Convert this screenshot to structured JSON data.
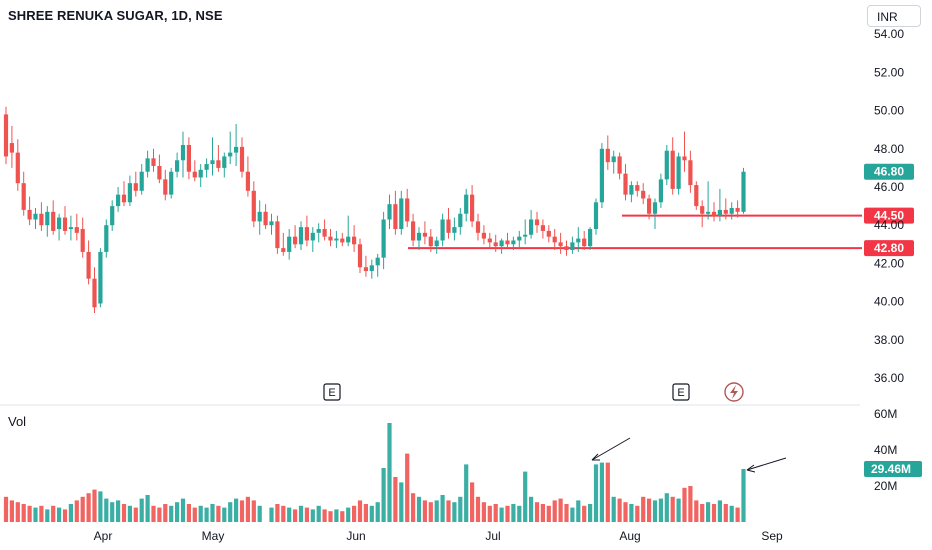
{
  "header": {
    "title": "SHREE RENUKA SUGAR, 1D, NSE",
    "currency": "INR"
  },
  "volume_pane": {
    "label": "Vol"
  },
  "colors": {
    "up": "#26a69a",
    "down": "#ef5350",
    "level": "#f23645",
    "axis_text": "#131722"
  },
  "chart_data": {
    "type": "candlestick",
    "price_axis": {
      "ticks": [
        36,
        38,
        40,
        42,
        44,
        46,
        48,
        50,
        52,
        54
      ],
      "tick_labels": [
        "36.00",
        "38.00",
        "40.00",
        "42.00",
        "44.00",
        "46.00",
        "48.00",
        "50.00",
        "52.00",
        "54.00"
      ]
    },
    "time_axis": {
      "labels": [
        "Apr",
        "May",
        "Jun",
        "Jul",
        "Aug",
        "Sep"
      ]
    },
    "volume_axis": {
      "ticks": [
        20,
        40,
        60
      ],
      "tick_labels": [
        "20M",
        "40M",
        "60M"
      ],
      "unit": "M"
    },
    "last_price": {
      "value": 46.8,
      "label": "46.80"
    },
    "last_volume": {
      "value": 29.46,
      "label": "29.46M"
    },
    "levels": [
      {
        "value": 44.5,
        "label": "44.50"
      },
      {
        "value": 42.8,
        "label": "42.80"
      }
    ],
    "earnings_markers": [
      {
        "label": "E"
      },
      {
        "label": "E"
      }
    ],
    "dividend_marker": {
      "icon": "lightning-icon"
    },
    "candles": [
      [
        49.8,
        50.2,
        47.2,
        47.6,
        14
      ],
      [
        48.3,
        49.2,
        47,
        47.8,
        12
      ],
      [
        47.8,
        48.5,
        45.8,
        46.2,
        11
      ],
      [
        46.2,
        46.8,
        44.5,
        44.8,
        10
      ],
      [
        44.8,
        45.5,
        44,
        44.3,
        9
      ],
      [
        44.3,
        44.9,
        43.8,
        44.6,
        8
      ],
      [
        44.6,
        45.2,
        43.7,
        44,
        9
      ],
      [
        44,
        45,
        43.4,
        44.7,
        7
      ],
      [
        44.7,
        45.3,
        43.5,
        43.7,
        9
      ],
      [
        43.8,
        44.6,
        43.2,
        44.4,
        8
      ],
      [
        44.4,
        45,
        43.5,
        43.7,
        7
      ],
      [
        43.8,
        44.5,
        43.2,
        43.9,
        10
      ],
      [
        43.9,
        44.6,
        43.2,
        43.6,
        12
      ],
      [
        43.8,
        44.4,
        42.3,
        42.6,
        14
      ],
      [
        42.6,
        43.2,
        40.9,
        41.2,
        16
      ],
      [
        41.2,
        41.8,
        39.4,
        39.7,
        18
      ],
      [
        39.9,
        42.8,
        39.7,
        42.6,
        17
      ],
      [
        42.6,
        44.3,
        42.3,
        44,
        13
      ],
      [
        44,
        45.3,
        43.7,
        45,
        11
      ],
      [
        45,
        46,
        44.7,
        45.6,
        12
      ],
      [
        45.6,
        46.3,
        45,
        45.2,
        10
      ],
      [
        45.2,
        46.6,
        45,
        46.2,
        9
      ],
      [
        46.2,
        46.8,
        45.5,
        45.8,
        8
      ],
      [
        45.8,
        47.2,
        45.6,
        46.8,
        13
      ],
      [
        46.8,
        47.9,
        46.5,
        47.5,
        15
      ],
      [
        47.5,
        48,
        46.8,
        47.1,
        9
      ],
      [
        47.1,
        47.7,
        46.2,
        46.4,
        8
      ],
      [
        46.4,
        46.9,
        45.3,
        45.6,
        10
      ],
      [
        45.6,
        47,
        45.4,
        46.8,
        9
      ],
      [
        46.8,
        47.8,
        46.5,
        47.4,
        11
      ],
      [
        47.4,
        48.9,
        46.5,
        48.2,
        13
      ],
      [
        48.2,
        48.6,
        46.4,
        46.8,
        10
      ],
      [
        46.8,
        47.4,
        46.3,
        46.5,
        8
      ],
      [
        46.5,
        47.2,
        46,
        46.9,
        9
      ],
      [
        46.9,
        47.5,
        46.5,
        47.2,
        8
      ],
      [
        47.2,
        48.6,
        46.6,
        47.4,
        10
      ],
      [
        47.4,
        48.2,
        46.8,
        47,
        9
      ],
      [
        47,
        47.8,
        46.5,
        47.6,
        8
      ],
      [
        47.6,
        48.9,
        47.2,
        47.8,
        11
      ],
      [
        47.8,
        49.3,
        47.1,
        48.1,
        13
      ],
      [
        48.1,
        48.6,
        46.5,
        46.8,
        12
      ],
      [
        46.8,
        47.6,
        45.5,
        45.8,
        14
      ],
      [
        45.8,
        46.3,
        43.9,
        44.2,
        12
      ],
      [
        44.2,
        45.3,
        43.5,
        44.7,
        9
      ],
      [
        44.7,
        45.1,
        43.8,
        44
      ],
      [
        44,
        44.6,
        43.5,
        44.2,
        8
      ],
      [
        44.2,
        44.5,
        42.5,
        42.8,
        10
      ],
      [
        42.8,
        43.6,
        42.4,
        42.6,
        9
      ],
      [
        42.6,
        43.8,
        42.2,
        43.4,
        8
      ],
      [
        43.4,
        44,
        42.8,
        43,
        7
      ],
      [
        43,
        44.2,
        42.7,
        43.9,
        9
      ],
      [
        43.9,
        44.5,
        42.9,
        43.2,
        8
      ],
      [
        43.2,
        43.9,
        42.6,
        43.6,
        7
      ],
      [
        43.6,
        44.1,
        43.1,
        43.8,
        9
      ],
      [
        43.8,
        44.3,
        43.2,
        43.4,
        7
      ],
      [
        43.4,
        43.8,
        42.9,
        43.2,
        6
      ],
      [
        43.2,
        43.7,
        42.8,
        43.3,
        7
      ],
      [
        43.3,
        43.6,
        42.9,
        43.1,
        6
      ],
      [
        43.1,
        44.5,
        42.9,
        43.4,
        8
      ],
      [
        43.4,
        44,
        42.6,
        43,
        9
      ],
      [
        43,
        43.3,
        41.5,
        41.8,
        12
      ],
      [
        41.8,
        42.4,
        41.3,
        41.6,
        10
      ],
      [
        41.6,
        42.2,
        41.2,
        41.9,
        9
      ],
      [
        41.9,
        42.5,
        41.3,
        42.3,
        11
      ],
      [
        42.3,
        44.7,
        41.7,
        44.3,
        30
      ],
      [
        44.3,
        45.6,
        43.8,
        45.1,
        55
      ],
      [
        45.1,
        45.8,
        43.5,
        43.8,
        25
      ],
      [
        43.8,
        45.8,
        43.5,
        45.4,
        22
      ],
      [
        45.4,
        45.9,
        43.9,
        44.2,
        38
      ],
      [
        44.2,
        44.6,
        42.9,
        43.2,
        16
      ],
      [
        43.2,
        43.9,
        42.7,
        43.6,
        14
      ],
      [
        43.6,
        44.2,
        43,
        43.4,
        12
      ],
      [
        43.4,
        43.8,
        42.6,
        42.9,
        11
      ],
      [
        42.9,
        43.4,
        42.5,
        43.2,
        12
      ],
      [
        43.2,
        44.6,
        42.9,
        44.3,
        15
      ],
      [
        44.3,
        44.9,
        43.3,
        43.6,
        12
      ],
      [
        43.6,
        44.4,
        43.2,
        43.9,
        11
      ],
      [
        43.9,
        44.9,
        43.5,
        44.6,
        14
      ],
      [
        44.6,
        45.9,
        44.2,
        45.6,
        32
      ],
      [
        45.6,
        46.1,
        43.9,
        44.2,
        22
      ],
      [
        44.2,
        44.6,
        43.2,
        43.6,
        14
      ],
      [
        43.6,
        44,
        43,
        43.3,
        11
      ],
      [
        43.3,
        43.6,
        42.8,
        43.1,
        9
      ],
      [
        43.1,
        43.5,
        42.6,
        42.9,
        10
      ],
      [
        42.9,
        43.3,
        42.5,
        43.2,
        8
      ],
      [
        43.2,
        43.6,
        42.8,
        43,
        9
      ],
      [
        43,
        43.4,
        42.7,
        43.2,
        10
      ],
      [
        43.2,
        43.7,
        42.8,
        43.4,
        9
      ],
      [
        43.4,
        44.3,
        43,
        43.5,
        28
      ],
      [
        43.5,
        44.8,
        43.3,
        44.3,
        14
      ],
      [
        44.3,
        44.7,
        43.6,
        44,
        11
      ],
      [
        44,
        44.3,
        43.3,
        43.7,
        10
      ],
      [
        43.7,
        44,
        43.1,
        43.4,
        9
      ],
      [
        43.4,
        43.8,
        42.7,
        43.1,
        12
      ],
      [
        43.1,
        43.6,
        42.5,
        42.9,
        13
      ],
      [
        42.9,
        43.2,
        42.4,
        42.7,
        10
      ],
      [
        42.7,
        43.4,
        42.5,
        43.1,
        8
      ],
      [
        43.1,
        43.9,
        42.6,
        43.3,
        12
      ],
      [
        43.3,
        43.7,
        42.7,
        42.9,
        9
      ],
      [
        42.9,
        43.9,
        42.7,
        43.8,
        10
      ],
      [
        43.8,
        45.4,
        43.5,
        45.2,
        32
      ],
      [
        45.2,
        48.3,
        44.9,
        48.0,
        33
      ],
      [
        48,
        48.7,
        46.9,
        47.3,
        33
      ],
      [
        47.3,
        47.9,
        46.7,
        47.6,
        14
      ],
      [
        47.6,
        47.8,
        46.4,
        46.7,
        13
      ],
      [
        46.7,
        47.2,
        45.3,
        45.6,
        11
      ],
      [
        45.6,
        46.3,
        45.2,
        46.1,
        10
      ],
      [
        46.1,
        46.3,
        45.5,
        45.8,
        9
      ],
      [
        45.8,
        46.2,
        45.1,
        45.4,
        14
      ],
      [
        45.4,
        45.6,
        44.3,
        44.6,
        13
      ],
      [
        44.6,
        45.4,
        43.8,
        45.2,
        12
      ],
      [
        45.2,
        46.7,
        44.9,
        46.4,
        13
      ],
      [
        46.4,
        48.2,
        46.1,
        47.9,
        16
      ],
      [
        47.9,
        48.6,
        45.6,
        45.9,
        14
      ],
      [
        45.9,
        47.8,
        45.6,
        47.6,
        13
      ],
      [
        47.6,
        48.9,
        46.8,
        47.4,
        19
      ],
      [
        47.4,
        47.9,
        45.7,
        46.1,
        20
      ],
      [
        46.1,
        46.3,
        44.8,
        45.0,
        12
      ],
      [
        45,
        45.3,
        43.9,
        44.6,
        10
      ],
      [
        44.6,
        46.3,
        44.3,
        44.7,
        11
      ],
      [
        44.7,
        45.2,
        44.2,
        44.5,
        10
      ],
      [
        44.5,
        45.9,
        44.2,
        44.8,
        12
      ],
      [
        44.8,
        45.4,
        44.3,
        44.6,
        10
      ],
      [
        44.6,
        45.2,
        44.3,
        44.9,
        9
      ],
      [
        44.9,
        45.3,
        44.4,
        44.7,
        8
      ],
      [
        44.7,
        47.0,
        44.6,
        46.8,
        29.46
      ]
    ]
  }
}
